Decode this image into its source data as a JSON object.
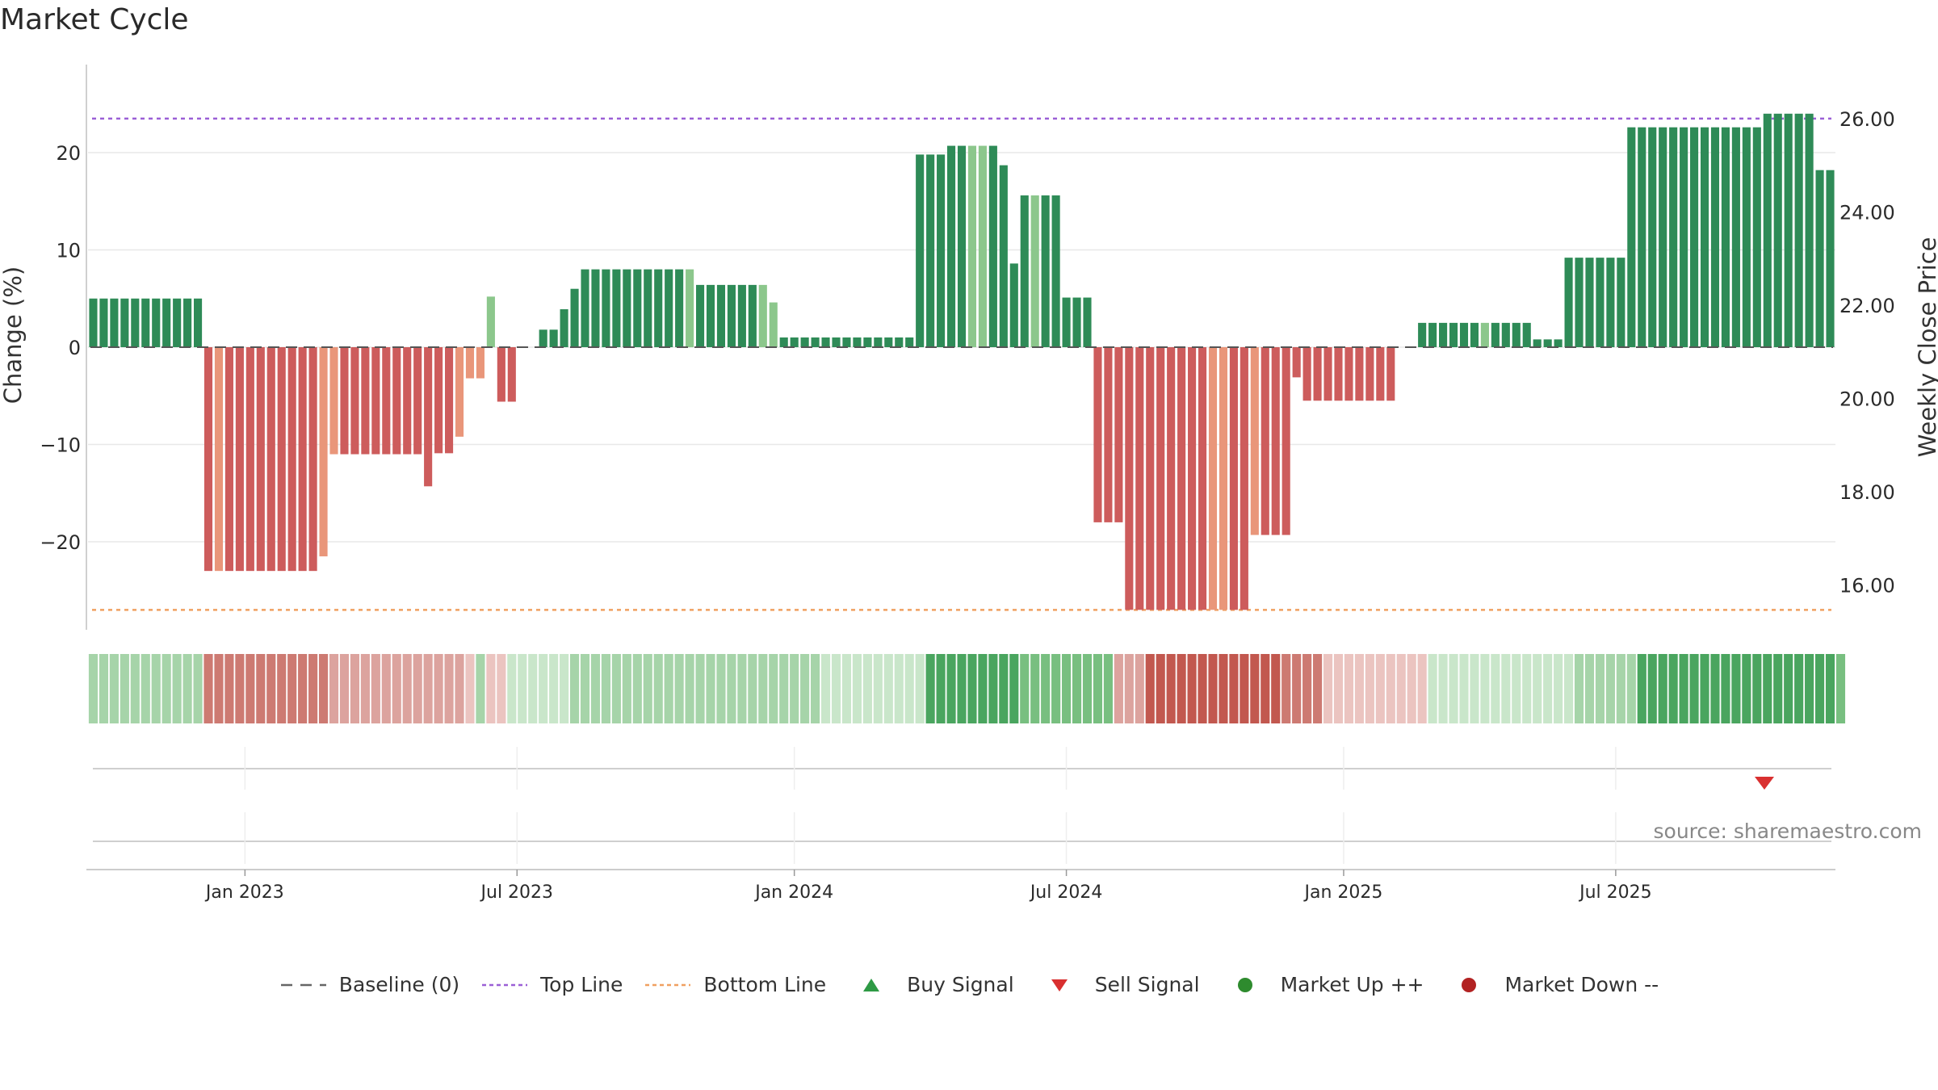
{
  "title": "Market Cycle",
  "source": "source: sharemaestro.com",
  "legend": [
    {
      "label": "Baseline (0)",
      "symbol": "dash",
      "color": "#666666"
    },
    {
      "label": "Top Line",
      "symbol": "dot",
      "color": "#9b5fd6"
    },
    {
      "label": "Bottom Line",
      "symbol": "dot",
      "color": "#f0a060"
    },
    {
      "label": "Buy Signal",
      "symbol": "triangle-up",
      "color": "#2e9a45"
    },
    {
      "label": "Sell Signal",
      "symbol": "triangle-down",
      "color": "#d93030"
    },
    {
      "label": "Market Up ++",
      "symbol": "circle",
      "color": "#2e8b2e"
    },
    {
      "label": "Market Down --",
      "symbol": "circle",
      "color": "#b22222"
    }
  ],
  "chart_data": {
    "type": "bar",
    "ylabel_left": "Change (%)",
    "ylabel_right": "Weekly Close Price",
    "ylim_left": [
      -29,
      29
    ],
    "yticks_left": [
      {
        "v": 20,
        "label": "20"
      },
      {
        "v": 10,
        "label": "10"
      },
      {
        "v": 0,
        "label": "0"
      },
      {
        "v": -10,
        "label": "−10"
      },
      {
        "v": -20,
        "label": "−20"
      }
    ],
    "yticks_right": [
      "26.00",
      "24.00",
      "22.00",
      "20.00",
      "18.00",
      "16.00"
    ],
    "xticks": [
      {
        "label": "Jan 2023",
        "week": 15
      },
      {
        "label": "Jul 2023",
        "week": 41
      },
      {
        "label": "Jan 2024",
        "week": 67.5
      },
      {
        "label": "Jul 2024",
        "week": 93.5
      },
      {
        "label": "Jan 2025",
        "week": 120
      },
      {
        "label": "Jul 2025",
        "week": 146
      }
    ],
    "top_line": 23.5,
    "bottom_line": -27,
    "colors": {
      "green": "#2e8b57",
      "green_light": "#8cc78c",
      "red": "#cd5c5c",
      "red_light": "#e9967a",
      "top": "#9b5fd6",
      "bottom": "#f0a060",
      "grid": "#e8e8e8"
    },
    "values": [
      5,
      5,
      5,
      5,
      5,
      5,
      5,
      5,
      5,
      5,
      5,
      -23,
      -23,
      -23,
      -23,
      -23,
      -23,
      -23,
      -23,
      -23,
      -23,
      -23,
      -21.5,
      -11,
      -11,
      -11,
      -11,
      -11,
      -11,
      -11,
      -11,
      -11,
      -14.3,
      -10.9,
      -10.9,
      -9.2,
      -3.2,
      -3.2,
      5.2,
      -5.6,
      -5.6,
      0,
      0,
      1.8,
      1.8,
      3.9,
      6,
      8,
      8,
      8,
      8,
      8,
      8,
      8,
      8,
      8,
      8,
      8,
      6.4,
      6.4,
      6.4,
      6.4,
      6.4,
      6.4,
      6.4,
      4.6,
      1,
      1,
      1,
      1,
      1,
      1,
      1,
      1,
      1,
      1,
      1,
      1,
      1,
      19.8,
      19.8,
      19.8,
      20.7,
      20.7,
      20.7,
      20.7,
      20.7,
      18.7,
      8.6,
      15.6,
      15.6,
      15.6,
      15.6,
      5.1,
      5.1,
      5.1,
      -18,
      -18,
      -18,
      -27,
      -27,
      -27,
      -27,
      -27,
      -27,
      -27,
      -27,
      -27,
      -27,
      -27,
      -27,
      -19.3,
      -19.3,
      -19.3,
      -19.3,
      -3.1,
      -5.5,
      -5.5,
      -5.5,
      -5.5,
      -5.5,
      -5.5,
      -5.5,
      -5.5,
      -5.5,
      0,
      0,
      2.5,
      2.5,
      2.5,
      2.5,
      2.5,
      2.5,
      2.5,
      2.5,
      2.5,
      2.5,
      2.5,
      0.8,
      0.8,
      0.8,
      9.2,
      9.2,
      9.2,
      9.2,
      9.2,
      9.2,
      22.6,
      22.6,
      22.6,
      22.6,
      22.6,
      22.6,
      22.6,
      22.6,
      22.6,
      22.6,
      22.6,
      22.6,
      22.6,
      24,
      24,
      24,
      24,
      24,
      18.2,
      18.2
    ],
    "light_bars": [
      12,
      22,
      23,
      35,
      36,
      37,
      38,
      57,
      64,
      65,
      84,
      85,
      90,
      107,
      108,
      111,
      133
    ],
    "heat_strip": [
      2,
      2,
      2,
      2,
      2,
      2,
      2,
      2,
      2,
      2,
      2,
      -3,
      -3,
      -3,
      -3,
      -3,
      -3,
      -3,
      -3,
      -3,
      -3,
      -3,
      -3,
      -2,
      -2,
      -2,
      -2,
      -2,
      -2,
      -2,
      -2,
      -2,
      -2,
      -2,
      -2,
      -2,
      -1,
      2,
      -1,
      -1,
      1,
      1,
      1,
      1,
      1,
      1,
      2,
      2,
      2,
      2,
      2,
      2,
      2,
      2,
      2,
      2,
      2,
      2,
      2,
      2,
      2,
      2,
      2,
      2,
      2,
      2,
      2,
      2,
      2,
      2,
      1,
      1,
      1,
      1,
      1,
      1,
      1,
      1,
      1,
      1,
      4,
      4,
      4,
      4,
      4,
      4,
      4,
      4,
      4,
      3,
      3,
      3,
      3,
      3,
      3,
      3,
      3,
      3,
      -2,
      -2,
      -2,
      -4,
      -4,
      -4,
      -4,
      -4,
      -4,
      -4,
      -4,
      -4,
      -4,
      -4,
      -4,
      -4,
      -3,
      -3,
      -3,
      -3,
      -1,
      -1,
      -1,
      -1,
      -1,
      -1,
      -1,
      -1,
      -1,
      -1,
      1,
      1,
      1,
      1,
      1,
      1,
      1,
      1,
      1,
      1,
      1,
      1,
      1,
      1,
      2,
      2,
      2,
      2,
      2,
      2,
      4,
      4,
      4,
      4,
      4,
      4,
      4,
      4,
      4,
      4,
      4,
      4,
      4,
      4,
      4,
      4,
      4,
      4,
      4,
      3
    ]
  }
}
